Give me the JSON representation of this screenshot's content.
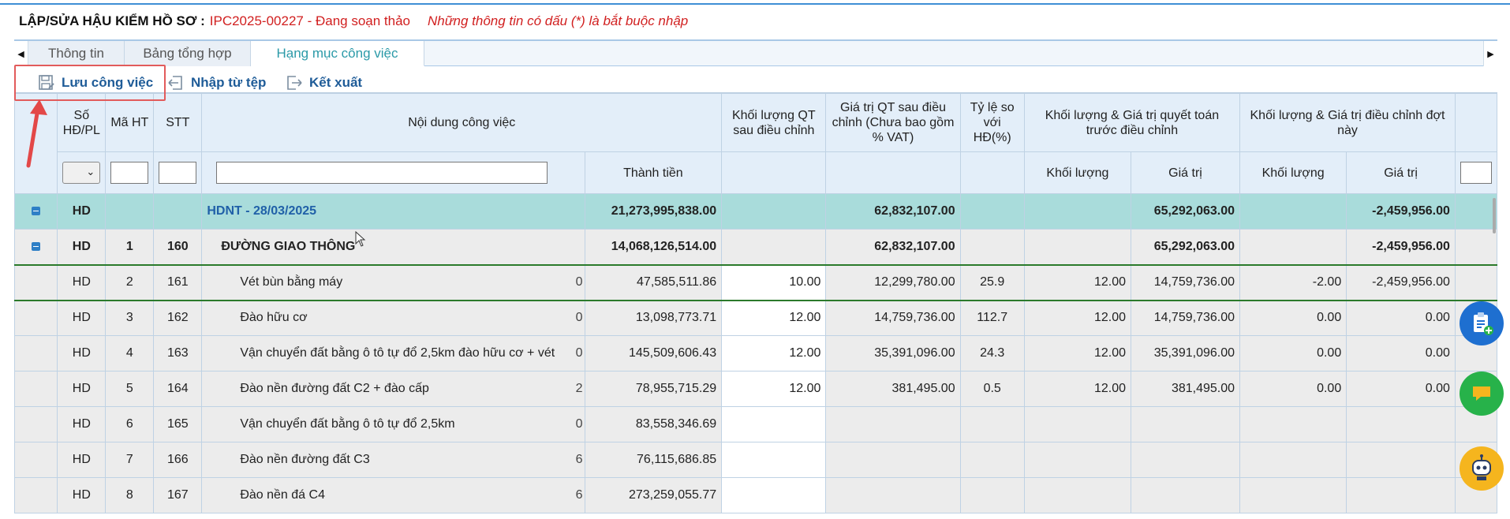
{
  "header": {
    "title": "LẬP/SỬA HẬU KIỂM HỒ SƠ :",
    "code_status": "IPC2025-00227 - Đang soạn thảo",
    "note": "Những thông tin có dấu (*) là bắt buộc nhập"
  },
  "tabs": [
    {
      "label": "Thông tin"
    },
    {
      "label": "Bảng tổng hợp"
    },
    {
      "label": "Hạng mục công việc"
    }
  ],
  "toolbar": {
    "save": "Lưu công việc",
    "import": "Nhập từ tệp",
    "export": "Kết xuất"
  },
  "columns": {
    "so_hd": "Số HĐ/PL",
    "ma_ht": "Mã HT",
    "stt": "STT",
    "noi_dung": "Nội dung công việc",
    "kl_qt": "Khối lượng QT sau điều chỉnh",
    "gt_qt": "Giá trị QT sau điều chỉnh (Chưa bao gồm % VAT)",
    "ty_le": "Tỷ lệ so với HĐ(%)",
    "group_truoc": "Khối lượng & Giá trị quyết toán trước điều chỉnh",
    "group_dot": "Khối lượng & Giá trị điều chỉnh đợt này",
    "thanh_tien": "Thành tiền",
    "khoi_luong": "Khối lượng",
    "gia_tri": "Giá trị"
  },
  "rows": [
    {
      "so_hd": "HD",
      "ma_ht": "",
      "stt": "",
      "noi_dung": "HDNT - 28/03/2025",
      "trunc": "",
      "thanh_tien": "21,273,995,838.00",
      "kl_qt": "",
      "gt_qt": "62,832,107.00",
      "ty_le": "",
      "kl_truoc": "",
      "gt_truoc": "65,292,063.00",
      "kl_dot": "",
      "gt_dot": "-2,459,956.00"
    },
    {
      "so_hd": "HD",
      "ma_ht": "1",
      "stt": "160",
      "noi_dung": "ĐƯỜNG GIAO THÔNG",
      "trunc": "",
      "thanh_tien": "14,068,126,514.00",
      "kl_qt": "",
      "gt_qt": "62,832,107.00",
      "ty_le": "",
      "kl_truoc": "",
      "gt_truoc": "65,292,063.00",
      "kl_dot": "",
      "gt_dot": "-2,459,956.00"
    },
    {
      "so_hd": "HD",
      "ma_ht": "2",
      "stt": "161",
      "noi_dung": "Vét bùn bằng máy",
      "trunc": "0",
      "thanh_tien": "47,585,511.86",
      "kl_qt": "10.00",
      "gt_qt": "12,299,780.00",
      "ty_le": "25.9",
      "kl_truoc": "12.00",
      "gt_truoc": "14,759,736.00",
      "kl_dot": "-2.00",
      "gt_dot": "-2,459,956.00"
    },
    {
      "so_hd": "HD",
      "ma_ht": "3",
      "stt": "162",
      "noi_dung": "Đào hữu cơ",
      "trunc": "0",
      "thanh_tien": "13,098,773.71",
      "kl_qt": "12.00",
      "gt_qt": "14,759,736.00",
      "ty_le": "112.7",
      "kl_truoc": "12.00",
      "gt_truoc": "14,759,736.00",
      "kl_dot": "0.00",
      "gt_dot": "0.00"
    },
    {
      "so_hd": "HD",
      "ma_ht": "4",
      "stt": "163",
      "noi_dung": "Vận chuyển đất bằng ô tô tự đổ 2,5km đào hữu cơ + vét",
      "trunc": "0",
      "thanh_tien": "145,509,606.43",
      "kl_qt": "12.00",
      "gt_qt": "35,391,096.00",
      "ty_le": "24.3",
      "kl_truoc": "12.00",
      "gt_truoc": "35,391,096.00",
      "kl_dot": "0.00",
      "gt_dot": "0.00"
    },
    {
      "so_hd": "HD",
      "ma_ht": "5",
      "stt": "164",
      "noi_dung": "Đào nền đường đất C2 + đào cấp",
      "trunc": "2",
      "thanh_tien": "78,955,715.29",
      "kl_qt": "12.00",
      "gt_qt": "381,495.00",
      "ty_le": "0.5",
      "kl_truoc": "12.00",
      "gt_truoc": "381,495.00",
      "kl_dot": "0.00",
      "gt_dot": "0.00"
    },
    {
      "so_hd": "HD",
      "ma_ht": "6",
      "stt": "165",
      "noi_dung": "Vận chuyển đất bằng ô tô tự đổ 2,5km",
      "trunc": "0",
      "thanh_tien": "83,558,346.69",
      "kl_qt": "",
      "gt_qt": "",
      "ty_le": "",
      "kl_truoc": "",
      "gt_truoc": "",
      "kl_dot": "",
      "gt_dot": ""
    },
    {
      "so_hd": "HD",
      "ma_ht": "7",
      "stt": "166",
      "noi_dung": "Đào nền đường đất C3",
      "trunc": "6",
      "thanh_tien": "76,115,686.85",
      "kl_qt": "",
      "gt_qt": "",
      "ty_le": "",
      "kl_truoc": "",
      "gt_truoc": "",
      "kl_dot": "",
      "gt_dot": ""
    },
    {
      "so_hd": "HD",
      "ma_ht": "8",
      "stt": "167",
      "noi_dung": "Đào nền đá C4",
      "trunc": "6",
      "thanh_tien": "273,259,055.77",
      "kl_qt": "",
      "gt_qt": "",
      "ty_le": "",
      "kl_truoc": "",
      "gt_truoc": "",
      "kl_dot": "",
      "gt_dot": ""
    }
  ],
  "icons": {
    "save": "save-icon",
    "import": "import-icon",
    "export": "export-icon",
    "fab1": "clipboard-add-icon",
    "fab2": "chat-icon",
    "fab3": "robot-support-icon"
  },
  "colors": {
    "accent": "#1f5c98",
    "status_red": "#d11f1f",
    "active_tab": "#2b9aa8",
    "group_row": "#a9dcdb"
  }
}
